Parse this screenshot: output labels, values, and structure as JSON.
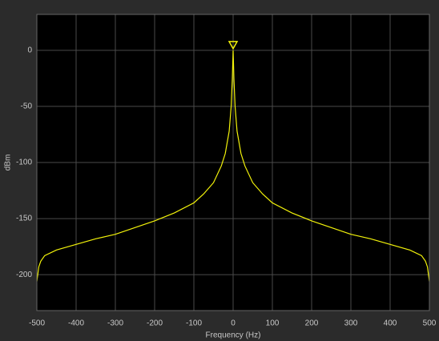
{
  "chart_data": {
    "type": "line",
    "x_label": "Frequency (Hz)",
    "y_label": "dBm",
    "x": [
      -500,
      -495,
      -490,
      -480,
      -450,
      -400,
      -350,
      -300,
      -250,
      -200,
      -150,
      -100,
      -75,
      -50,
      -30,
      -20,
      -10,
      -5,
      -2,
      0,
      2,
      5,
      10,
      20,
      30,
      50,
      75,
      100,
      150,
      200,
      250,
      300,
      350,
      400,
      450,
      480,
      490,
      495,
      500
    ],
    "values": [
      -206,
      -193,
      -188,
      -183,
      -178,
      -173,
      -168,
      -164,
      -158,
      -152,
      -145,
      -136,
      -128,
      -118,
      -103,
      -92,
      -72,
      -50,
      -25,
      0,
      -25,
      -50,
      -72,
      -92,
      -103,
      -118,
      -128,
      -136,
      -145,
      -152,
      -158,
      -164,
      -168,
      -173,
      -178,
      -183,
      -188,
      -193,
      -206
    ],
    "color": "#f2f20a",
    "peak_marker": true,
    "xlim": [
      -500,
      500
    ],
    "ylim": [
      -232,
      32
    ],
    "xticks": [
      -500,
      -400,
      -300,
      -200,
      -100,
      0,
      100,
      200,
      300,
      400,
      500
    ],
    "yticks": [
      -200,
      -150,
      -100,
      -50,
      0
    ],
    "grid": true
  }
}
